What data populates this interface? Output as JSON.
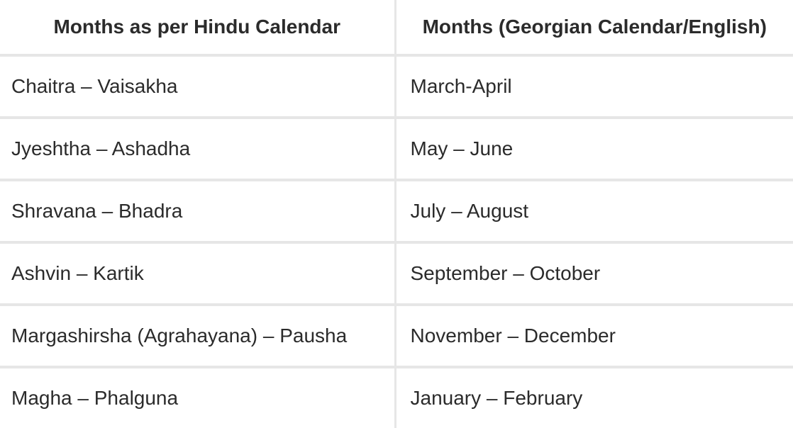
{
  "table": {
    "headers": [
      "Months as per Hindu Calendar",
      "Months (Georgian Calendar/English)"
    ],
    "rows": [
      [
        "Chaitra – Vaisakha",
        "March-April"
      ],
      [
        "Jyeshtha – Ashadha",
        "May – June"
      ],
      [
        "Shravana – Bhadra",
        "July – August"
      ],
      [
        "Ashvin – Kartik",
        "September – October"
      ],
      [
        "Margashirsha (Agrahayana) – Pausha",
        "November – December"
      ],
      [
        "Magha – Phalguna",
        "January – February"
      ]
    ]
  },
  "colors": {
    "text": "#2b2b2b",
    "border": "#e6e6e6",
    "background": "#ffffff"
  }
}
